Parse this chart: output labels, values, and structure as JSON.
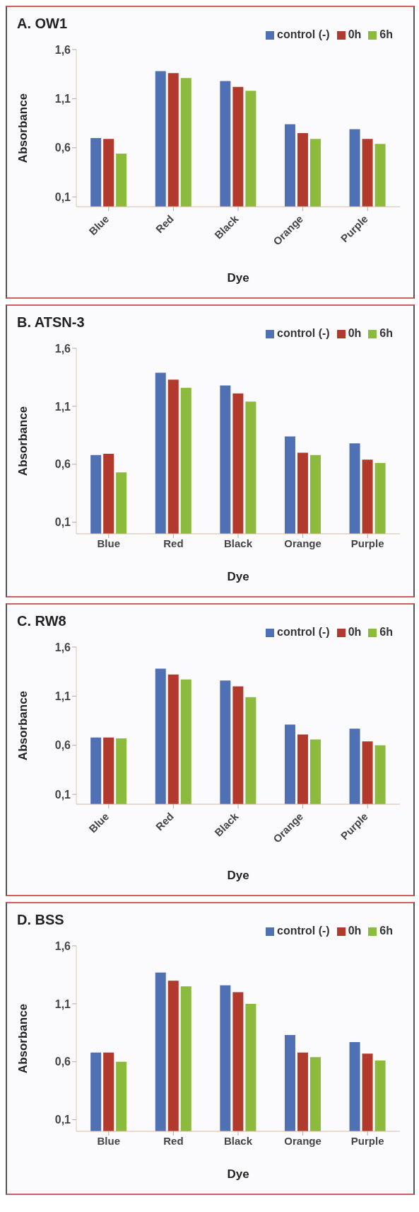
{
  "chart_data": [
    {
      "type": "bar",
      "title": "A. OW1",
      "xlabel": "Dye",
      "ylabel": "Absorbance",
      "categories": [
        "Blue",
        "Red",
        "Black",
        "Orange",
        "Purple"
      ],
      "series": [
        {
          "name": "control (-)",
          "color": "#5070b4",
          "values": [
            0.7,
            1.38,
            1.28,
            0.84,
            0.79
          ]
        },
        {
          "name": "0h",
          "color": "#b23a2c",
          "values": [
            0.69,
            1.36,
            1.22,
            0.75,
            0.69
          ]
        },
        {
          "name": "6h",
          "color": "#8cba3c",
          "values": [
            0.54,
            1.31,
            1.18,
            0.69,
            0.64
          ]
        }
      ],
      "ylim": [
        0,
        1.6
      ],
      "yticks": [
        {
          "value": 0.1,
          "label": "0,1"
        },
        {
          "value": 0.6,
          "label": "0,6"
        },
        {
          "value": 1.1,
          "label": "1,1"
        },
        {
          "value": 1.6,
          "label": "1,6"
        }
      ],
      "grid": false,
      "legend": "top right"
    },
    {
      "type": "bar",
      "title": "B. ATSN-3",
      "xlabel": "Dye",
      "ylabel": "Absorbance",
      "categories": [
        "Blue",
        "Red",
        "Black",
        "Orange",
        "Purple"
      ],
      "series": [
        {
          "name": "control (-)",
          "color": "#5070b4",
          "values": [
            0.68,
            1.39,
            1.28,
            0.84,
            0.78
          ]
        },
        {
          "name": "0h",
          "color": "#b23a2c",
          "values": [
            0.69,
            1.33,
            1.21,
            0.7,
            0.64
          ]
        },
        {
          "name": "6h",
          "color": "#8cba3c",
          "values": [
            0.53,
            1.26,
            1.14,
            0.68,
            0.61
          ]
        }
      ],
      "ylim": [
        0,
        1.6
      ],
      "yticks": [
        {
          "value": 0.1,
          "label": "0,1"
        },
        {
          "value": 0.6,
          "label": "0,6"
        },
        {
          "value": 1.1,
          "label": "1,1"
        },
        {
          "value": 1.6,
          "label": "1,6"
        }
      ],
      "grid": false,
      "legend": "top right"
    },
    {
      "type": "bar",
      "title": "C. RW8",
      "xlabel": "Dye",
      "ylabel": "Absorbance",
      "categories": [
        "Blue",
        "Red",
        "Black",
        "Orange",
        "Purple"
      ],
      "series": [
        {
          "name": "control (-)",
          "color": "#5070b4",
          "values": [
            0.68,
            1.38,
            1.26,
            0.81,
            0.77
          ]
        },
        {
          "name": "0h",
          "color": "#b23a2c",
          "values": [
            0.68,
            1.32,
            1.2,
            0.71,
            0.64
          ]
        },
        {
          "name": "6h",
          "color": "#8cba3c",
          "values": [
            0.67,
            1.27,
            1.09,
            0.66,
            0.6
          ]
        }
      ],
      "ylim": [
        0,
        1.6
      ],
      "yticks": [
        {
          "value": 0.1,
          "label": "0,1"
        },
        {
          "value": 0.6,
          "label": "0,6"
        },
        {
          "value": 1.1,
          "label": "1,1"
        },
        {
          "value": 1.6,
          "label": "1,6"
        }
      ],
      "grid": false,
      "legend": "top right"
    },
    {
      "type": "bar",
      "title": "D. BSS",
      "xlabel": "Dye",
      "ylabel": "Absorbance",
      "categories": [
        "Blue",
        "Red",
        "Black",
        "Orange",
        "Purple"
      ],
      "series": [
        {
          "name": "control (-)",
          "color": "#5070b4",
          "values": [
            0.68,
            1.37,
            1.26,
            0.83,
            0.77
          ]
        },
        {
          "name": "0h",
          "color": "#b23a2c",
          "values": [
            0.68,
            1.3,
            1.2,
            0.68,
            0.67
          ]
        },
        {
          "name": "6h",
          "color": "#8cba3c",
          "values": [
            0.6,
            1.25,
            1.1,
            0.64,
            0.61
          ]
        }
      ],
      "ylim": [
        0,
        1.6
      ],
      "yticks": [
        {
          "value": 0.1,
          "label": "0,1"
        },
        {
          "value": 0.6,
          "label": "0,6"
        },
        {
          "value": 1.1,
          "label": "1,1"
        },
        {
          "value": 1.6,
          "label": "1,6"
        }
      ],
      "grid": false,
      "legend": "top right"
    }
  ]
}
